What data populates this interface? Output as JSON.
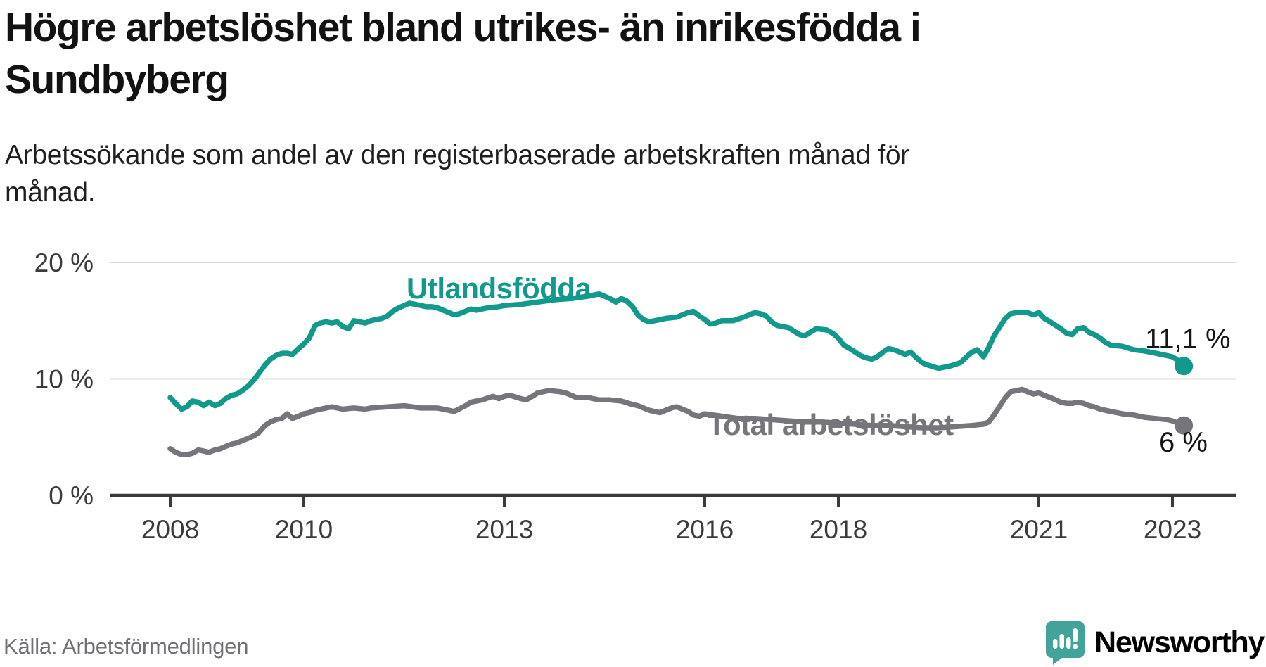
{
  "header": {
    "title_line1": "Högre arbetslöshet bland utrikes- än inrikesfödda i",
    "title_line2": "Sundbyberg",
    "subtitle_line1": "Arbetssökande som andel av den registerbaserade arbetskraften månad för",
    "subtitle_line2": "månad."
  },
  "footer": {
    "source": "Källa: Arbetsförmedlingen",
    "brand": "Newsworthy"
  },
  "colors": {
    "foreign_born": "#11998c",
    "total": "#75757b",
    "axis": "#3a3a3a",
    "grid": "#d9d9d9",
    "tick_text": "#3b3b3b",
    "brand_teal": "#42a39b"
  },
  "chart_data": {
    "type": "line",
    "title": "Högre arbetslöshet bland utrikes- än inrikesfödda i Sundbyberg",
    "subtitle": "Arbetssökande som andel av den registerbaserade arbetskraften månad för månad.",
    "source": "Källa: Arbetsförmedlingen",
    "x_unit": "year (monthly data)",
    "y_unit": "%",
    "ylim": [
      0,
      21
    ],
    "xlim": [
      2007.1,
      2023.95
    ],
    "grid": "horizontal",
    "y_ticks": [
      {
        "value": 20,
        "label": "20 %"
      },
      {
        "value": 10,
        "label": "10 %"
      },
      {
        "value": 0,
        "label": "0 %"
      }
    ],
    "x_ticks": [
      {
        "value": 2008,
        "label": "2008"
      },
      {
        "value": 2010,
        "label": "2010"
      },
      {
        "value": 2013,
        "label": "2013"
      },
      {
        "value": 2016,
        "label": "2016"
      },
      {
        "value": 2018,
        "label": "2018"
      },
      {
        "value": 2021,
        "label": "2021"
      },
      {
        "value": 2023,
        "label": "2023"
      }
    ],
    "series": [
      {
        "name": "Utlandsfödda",
        "color": "#11998c",
        "end_label": "11,1 %",
        "end_value": 11.1,
        "points": [
          [
            2008.0,
            8.4
          ],
          [
            2008.08,
            7.9
          ],
          [
            2008.17,
            7.4
          ],
          [
            2008.25,
            7.6
          ],
          [
            2008.33,
            8.1
          ],
          [
            2008.42,
            8.0
          ],
          [
            2008.5,
            7.7
          ],
          [
            2008.58,
            8.0
          ],
          [
            2008.67,
            7.7
          ],
          [
            2008.75,
            7.9
          ],
          [
            2008.83,
            8.3
          ],
          [
            2008.92,
            8.6
          ],
          [
            2009.0,
            8.7
          ],
          [
            2009.08,
            9.0
          ],
          [
            2009.17,
            9.4
          ],
          [
            2009.25,
            9.9
          ],
          [
            2009.33,
            10.5
          ],
          [
            2009.42,
            11.2
          ],
          [
            2009.5,
            11.7
          ],
          [
            2009.58,
            12.0
          ],
          [
            2009.67,
            12.2
          ],
          [
            2009.75,
            12.2
          ],
          [
            2009.83,
            12.1
          ],
          [
            2009.92,
            12.6
          ],
          [
            2010.0,
            13.0
          ],
          [
            2010.08,
            13.5
          ],
          [
            2010.17,
            14.6
          ],
          [
            2010.25,
            14.8
          ],
          [
            2010.33,
            14.9
          ],
          [
            2010.42,
            14.8
          ],
          [
            2010.5,
            14.9
          ],
          [
            2010.58,
            14.5
          ],
          [
            2010.67,
            14.3
          ],
          [
            2010.75,
            15.0
          ],
          [
            2010.83,
            14.9
          ],
          [
            2010.92,
            14.8
          ],
          [
            2011.0,
            15.0
          ],
          [
            2011.08,
            15.1
          ],
          [
            2011.17,
            15.2
          ],
          [
            2011.25,
            15.4
          ],
          [
            2011.33,
            15.8
          ],
          [
            2011.42,
            16.1
          ],
          [
            2011.5,
            16.3
          ],
          [
            2011.58,
            16.5
          ],
          [
            2011.67,
            16.4
          ],
          [
            2011.75,
            16.3
          ],
          [
            2011.83,
            16.2
          ],
          [
            2011.92,
            16.2
          ],
          [
            2012.0,
            16.1
          ],
          [
            2012.17,
            15.7
          ],
          [
            2012.25,
            15.5
          ],
          [
            2012.33,
            15.6
          ],
          [
            2012.5,
            16.0
          ],
          [
            2012.58,
            15.9
          ],
          [
            2012.75,
            16.1
          ],
          [
            2012.92,
            16.2
          ],
          [
            2013.0,
            16.3
          ],
          [
            2013.25,
            16.4
          ],
          [
            2013.5,
            16.6
          ],
          [
            2013.75,
            16.8
          ],
          [
            2014.0,
            16.9
          ],
          [
            2014.25,
            17.1
          ],
          [
            2014.42,
            17.3
          ],
          [
            2014.58,
            16.9
          ],
          [
            2014.67,
            16.6
          ],
          [
            2014.75,
            16.9
          ],
          [
            2014.83,
            16.7
          ],
          [
            2014.92,
            16.2
          ],
          [
            2015.0,
            15.5
          ],
          [
            2015.08,
            15.1
          ],
          [
            2015.17,
            14.9
          ],
          [
            2015.25,
            15.0
          ],
          [
            2015.42,
            15.2
          ],
          [
            2015.58,
            15.3
          ],
          [
            2015.75,
            15.7
          ],
          [
            2015.83,
            15.8
          ],
          [
            2015.92,
            15.4
          ],
          [
            2016.0,
            15.1
          ],
          [
            2016.08,
            14.7
          ],
          [
            2016.17,
            14.8
          ],
          [
            2016.25,
            15.0
          ],
          [
            2016.42,
            15.0
          ],
          [
            2016.58,
            15.3
          ],
          [
            2016.75,
            15.7
          ],
          [
            2016.83,
            15.6
          ],
          [
            2016.92,
            15.4
          ],
          [
            2017.0,
            14.9
          ],
          [
            2017.08,
            14.6
          ],
          [
            2017.25,
            14.4
          ],
          [
            2017.42,
            13.8
          ],
          [
            2017.5,
            13.7
          ],
          [
            2017.58,
            14.0
          ],
          [
            2017.67,
            14.3
          ],
          [
            2017.83,
            14.2
          ],
          [
            2017.92,
            13.9
          ],
          [
            2018.0,
            13.5
          ],
          [
            2018.08,
            12.9
          ],
          [
            2018.17,
            12.6
          ],
          [
            2018.25,
            12.3
          ],
          [
            2018.33,
            12.0
          ],
          [
            2018.42,
            11.8
          ],
          [
            2018.5,
            11.7
          ],
          [
            2018.58,
            11.9
          ],
          [
            2018.67,
            12.3
          ],
          [
            2018.75,
            12.6
          ],
          [
            2018.83,
            12.5
          ],
          [
            2018.92,
            12.3
          ],
          [
            2019.0,
            12.1
          ],
          [
            2019.08,
            12.3
          ],
          [
            2019.17,
            11.8
          ],
          [
            2019.25,
            11.4
          ],
          [
            2019.33,
            11.2
          ],
          [
            2019.5,
            10.9
          ],
          [
            2019.58,
            11.0
          ],
          [
            2019.67,
            11.1
          ],
          [
            2019.83,
            11.4
          ],
          [
            2019.92,
            11.9
          ],
          [
            2020.0,
            12.3
          ],
          [
            2020.08,
            12.5
          ],
          [
            2020.17,
            11.9
          ],
          [
            2020.25,
            12.7
          ],
          [
            2020.33,
            13.7
          ],
          [
            2020.42,
            14.5
          ],
          [
            2020.5,
            15.2
          ],
          [
            2020.58,
            15.6
          ],
          [
            2020.67,
            15.7
          ],
          [
            2020.83,
            15.7
          ],
          [
            2020.92,
            15.5
          ],
          [
            2021.0,
            15.7
          ],
          [
            2021.08,
            15.2
          ],
          [
            2021.17,
            14.9
          ],
          [
            2021.25,
            14.6
          ],
          [
            2021.33,
            14.3
          ],
          [
            2021.42,
            13.9
          ],
          [
            2021.5,
            13.8
          ],
          [
            2021.58,
            14.3
          ],
          [
            2021.67,
            14.4
          ],
          [
            2021.75,
            14.0
          ],
          [
            2021.83,
            13.8
          ],
          [
            2021.92,
            13.5
          ],
          [
            2022.0,
            13.1
          ],
          [
            2022.08,
            12.9
          ],
          [
            2022.25,
            12.8
          ],
          [
            2022.42,
            12.5
          ],
          [
            2022.58,
            12.4
          ],
          [
            2022.75,
            12.2
          ],
          [
            2022.92,
            12.0
          ],
          [
            2023.0,
            11.9
          ],
          [
            2023.08,
            11.6
          ],
          [
            2023.17,
            11.1
          ]
        ]
      },
      {
        "name": "Total arbetslöshet",
        "color": "#75757b",
        "end_label": "6 %",
        "end_value": 6.0,
        "points": [
          [
            2008.0,
            4.0
          ],
          [
            2008.08,
            3.7
          ],
          [
            2008.17,
            3.5
          ],
          [
            2008.25,
            3.5
          ],
          [
            2008.33,
            3.6
          ],
          [
            2008.42,
            3.9
          ],
          [
            2008.5,
            3.8
          ],
          [
            2008.58,
            3.7
          ],
          [
            2008.67,
            3.9
          ],
          [
            2008.75,
            4.0
          ],
          [
            2008.83,
            4.2
          ],
          [
            2008.92,
            4.4
          ],
          [
            2009.0,
            4.5
          ],
          [
            2009.08,
            4.7
          ],
          [
            2009.17,
            4.9
          ],
          [
            2009.25,
            5.1
          ],
          [
            2009.33,
            5.4
          ],
          [
            2009.42,
            6.0
          ],
          [
            2009.5,
            6.3
          ],
          [
            2009.58,
            6.5
          ],
          [
            2009.67,
            6.6
          ],
          [
            2009.75,
            7.0
          ],
          [
            2009.83,
            6.6
          ],
          [
            2009.92,
            6.8
          ],
          [
            2010.0,
            7.0
          ],
          [
            2010.08,
            7.1
          ],
          [
            2010.17,
            7.3
          ],
          [
            2010.25,
            7.4
          ],
          [
            2010.33,
            7.5
          ],
          [
            2010.42,
            7.6
          ],
          [
            2010.5,
            7.5
          ],
          [
            2010.58,
            7.4
          ],
          [
            2010.75,
            7.5
          ],
          [
            2010.92,
            7.4
          ],
          [
            2011.0,
            7.5
          ],
          [
            2011.25,
            7.6
          ],
          [
            2011.5,
            7.7
          ],
          [
            2011.75,
            7.5
          ],
          [
            2012.0,
            7.5
          ],
          [
            2012.17,
            7.3
          ],
          [
            2012.25,
            7.2
          ],
          [
            2012.42,
            7.7
          ],
          [
            2012.5,
            8.0
          ],
          [
            2012.67,
            8.2
          ],
          [
            2012.83,
            8.5
          ],
          [
            2012.92,
            8.3
          ],
          [
            2013.0,
            8.5
          ],
          [
            2013.08,
            8.6
          ],
          [
            2013.25,
            8.3
          ],
          [
            2013.33,
            8.2
          ],
          [
            2013.42,
            8.5
          ],
          [
            2013.5,
            8.8
          ],
          [
            2013.67,
            9.0
          ],
          [
            2013.83,
            8.9
          ],
          [
            2013.92,
            8.8
          ],
          [
            2014.0,
            8.6
          ],
          [
            2014.08,
            8.4
          ],
          [
            2014.25,
            8.4
          ],
          [
            2014.42,
            8.2
          ],
          [
            2014.58,
            8.2
          ],
          [
            2014.75,
            8.1
          ],
          [
            2014.92,
            7.8
          ],
          [
            2015.0,
            7.7
          ],
          [
            2015.17,
            7.3
          ],
          [
            2015.33,
            7.1
          ],
          [
            2015.5,
            7.5
          ],
          [
            2015.58,
            7.6
          ],
          [
            2015.75,
            7.2
          ],
          [
            2015.83,
            6.9
          ],
          [
            2015.92,
            6.8
          ],
          [
            2016.0,
            7.0
          ],
          [
            2016.25,
            6.8
          ],
          [
            2016.5,
            6.6
          ],
          [
            2016.75,
            6.6
          ],
          [
            2017.0,
            6.5
          ],
          [
            2017.25,
            6.4
          ],
          [
            2017.5,
            6.3
          ],
          [
            2017.75,
            6.3
          ],
          [
            2018.0,
            6.2
          ],
          [
            2018.25,
            6.1
          ],
          [
            2018.5,
            6.0
          ],
          [
            2018.75,
            6.0
          ],
          [
            2019.0,
            5.9
          ],
          [
            2019.25,
            5.8
          ],
          [
            2019.5,
            5.8
          ],
          [
            2019.75,
            5.9
          ],
          [
            2020.0,
            6.0
          ],
          [
            2020.17,
            6.1
          ],
          [
            2020.25,
            6.3
          ],
          [
            2020.33,
            6.9
          ],
          [
            2020.42,
            7.7
          ],
          [
            2020.5,
            8.4
          ],
          [
            2020.58,
            8.9
          ],
          [
            2020.67,
            9.0
          ],
          [
            2020.75,
            9.1
          ],
          [
            2020.83,
            8.9
          ],
          [
            2020.92,
            8.7
          ],
          [
            2021.0,
            8.8
          ],
          [
            2021.08,
            8.6
          ],
          [
            2021.17,
            8.4
          ],
          [
            2021.25,
            8.2
          ],
          [
            2021.33,
            8.0
          ],
          [
            2021.42,
            7.9
          ],
          [
            2021.5,
            7.9
          ],
          [
            2021.58,
            8.0
          ],
          [
            2021.67,
            7.9
          ],
          [
            2021.75,
            7.7
          ],
          [
            2021.83,
            7.6
          ],
          [
            2021.92,
            7.4
          ],
          [
            2022.0,
            7.3
          ],
          [
            2022.08,
            7.2
          ],
          [
            2022.17,
            7.1
          ],
          [
            2022.25,
            7.0
          ],
          [
            2022.42,
            6.9
          ],
          [
            2022.5,
            6.8
          ],
          [
            2022.58,
            6.7
          ],
          [
            2022.75,
            6.6
          ],
          [
            2022.92,
            6.5
          ],
          [
            2023.0,
            6.4
          ],
          [
            2023.08,
            6.2
          ],
          [
            2023.17,
            6.0
          ]
        ]
      }
    ],
    "legend_position": "inline-labels"
  }
}
